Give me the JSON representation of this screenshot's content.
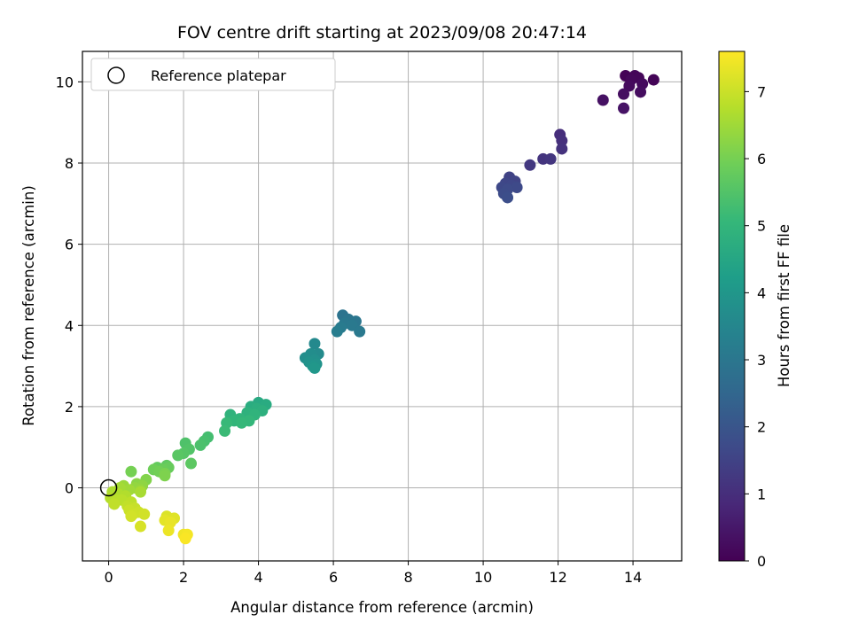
{
  "chart_data": {
    "type": "scatter",
    "title": "FOV centre drift starting at 2023/09/08 20:47:14",
    "xlabel": "Angular distance from reference (arcmin)",
    "ylabel": "Rotation from reference (arcmin)",
    "xlim": [
      -0.7,
      15.3
    ],
    "ylim": [
      -1.8,
      10.75
    ],
    "xticks": [
      0,
      2,
      4,
      6,
      8,
      10,
      12,
      14
    ],
    "yticks": [
      0,
      2,
      4,
      6,
      8,
      10
    ],
    "grid": true,
    "legend": {
      "position": "top-left",
      "entries": [
        "Reference platepar"
      ]
    },
    "reference_point": {
      "x": 0,
      "y": 0,
      "label": "Reference platepar"
    },
    "colorbar": {
      "label": "Hours from first FF file",
      "range": [
        0,
        7.6
      ],
      "ticks": [
        0,
        1,
        2,
        3,
        4,
        5,
        6,
        7
      ],
      "colormap": "viridis"
    },
    "series": [
      {
        "points": [
          {
            "x": 13.8,
            "y": 10.15,
            "t": 0.05
          },
          {
            "x": 14.05,
            "y": 10.15,
            "t": 0.1
          },
          {
            "x": 14.15,
            "y": 10.1,
            "t": 0.12
          },
          {
            "x": 13.95,
            "y": 10.05,
            "t": 0.15
          },
          {
            "x": 14.55,
            "y": 10.05,
            "t": 0.08
          },
          {
            "x": 14.25,
            "y": 9.95,
            "t": 0.2
          },
          {
            "x": 13.9,
            "y": 9.9,
            "t": 0.22
          },
          {
            "x": 14.2,
            "y": 9.75,
            "t": 0.25
          },
          {
            "x": 13.75,
            "y": 9.7,
            "t": 0.28
          },
          {
            "x": 13.2,
            "y": 9.55,
            "t": 0.35
          },
          {
            "x": 13.75,
            "y": 9.35,
            "t": 0.4
          },
          {
            "x": 12.05,
            "y": 8.7,
            "t": 1.0
          },
          {
            "x": 12.1,
            "y": 8.55,
            "t": 1.05
          },
          {
            "x": 12.1,
            "y": 8.35,
            "t": 1.1
          },
          {
            "x": 11.6,
            "y": 8.1,
            "t": 1.15
          },
          {
            "x": 11.8,
            "y": 8.1,
            "t": 1.18
          },
          {
            "x": 11.25,
            "y": 7.95,
            "t": 1.25
          },
          {
            "x": 10.7,
            "y": 7.65,
            "t": 1.5
          },
          {
            "x": 10.85,
            "y": 7.55,
            "t": 1.55
          },
          {
            "x": 10.6,
            "y": 7.5,
            "t": 1.6
          },
          {
            "x": 10.75,
            "y": 7.45,
            "t": 1.62
          },
          {
            "x": 10.5,
            "y": 7.4,
            "t": 1.65
          },
          {
            "x": 10.9,
            "y": 7.4,
            "t": 1.7
          },
          {
            "x": 10.65,
            "y": 7.35,
            "t": 1.72
          },
          {
            "x": 10.55,
            "y": 7.25,
            "t": 1.75
          },
          {
            "x": 10.65,
            "y": 7.15,
            "t": 1.8
          },
          {
            "x": 6.25,
            "y": 4.25,
            "t": 2.9
          },
          {
            "x": 6.4,
            "y": 4.15,
            "t": 2.95
          },
          {
            "x": 6.6,
            "y": 4.1,
            "t": 3.0
          },
          {
            "x": 6.3,
            "y": 4.05,
            "t": 3.05
          },
          {
            "x": 6.5,
            "y": 4.0,
            "t": 3.1
          },
          {
            "x": 6.2,
            "y": 3.95,
            "t": 3.15
          },
          {
            "x": 6.1,
            "y": 3.85,
            "t": 3.2
          },
          {
            "x": 6.7,
            "y": 3.85,
            "t": 3.1
          },
          {
            "x": 5.5,
            "y": 3.55,
            "t": 3.6
          },
          {
            "x": 5.6,
            "y": 3.3,
            "t": 3.65
          },
          {
            "x": 5.4,
            "y": 3.3,
            "t": 3.7
          },
          {
            "x": 5.25,
            "y": 3.2,
            "t": 3.75
          },
          {
            "x": 5.5,
            "y": 3.15,
            "t": 3.8
          },
          {
            "x": 5.35,
            "y": 3.1,
            "t": 3.85
          },
          {
            "x": 5.55,
            "y": 3.05,
            "t": 3.9
          },
          {
            "x": 5.45,
            "y": 3.0,
            "t": 3.95
          },
          {
            "x": 5.5,
            "y": 2.95,
            "t": 4.0
          },
          {
            "x": 4.0,
            "y": 2.1,
            "t": 4.6
          },
          {
            "x": 4.2,
            "y": 2.05,
            "t": 4.65
          },
          {
            "x": 3.8,
            "y": 2.0,
            "t": 4.7
          },
          {
            "x": 3.95,
            "y": 1.95,
            "t": 4.75
          },
          {
            "x": 4.1,
            "y": 1.9,
            "t": 4.8
          },
          {
            "x": 3.7,
            "y": 1.85,
            "t": 4.85
          },
          {
            "x": 3.25,
            "y": 1.8,
            "t": 4.9
          },
          {
            "x": 3.9,
            "y": 1.8,
            "t": 4.92
          },
          {
            "x": 3.5,
            "y": 1.7,
            "t": 4.95
          },
          {
            "x": 3.35,
            "y": 1.65,
            "t": 5.0
          },
          {
            "x": 3.75,
            "y": 1.65,
            "t": 5.02
          },
          {
            "x": 3.55,
            "y": 1.6,
            "t": 5.05
          },
          {
            "x": 3.15,
            "y": 1.6,
            "t": 5.1
          },
          {
            "x": 3.1,
            "y": 1.4,
            "t": 5.15
          },
          {
            "x": 2.65,
            "y": 1.25,
            "t": 5.3
          },
          {
            "x": 2.55,
            "y": 1.15,
            "t": 5.35
          },
          {
            "x": 2.05,
            "y": 1.1,
            "t": 5.45
          },
          {
            "x": 2.45,
            "y": 1.05,
            "t": 5.4
          },
          {
            "x": 2.15,
            "y": 0.95,
            "t": 5.5
          },
          {
            "x": 2.0,
            "y": 0.85,
            "t": 5.55
          },
          {
            "x": 1.85,
            "y": 0.8,
            "t": 5.6
          },
          {
            "x": 2.2,
            "y": 0.6,
            "t": 5.65
          },
          {
            "x": 1.55,
            "y": 0.55,
            "t": 5.7
          },
          {
            "x": 1.3,
            "y": 0.5,
            "t": 5.75
          },
          {
            "x": 1.6,
            "y": 0.5,
            "t": 5.8
          },
          {
            "x": 1.45,
            "y": 0.45,
            "t": 5.85
          },
          {
            "x": 1.2,
            "y": 0.45,
            "t": 5.9
          },
          {
            "x": 1.35,
            "y": 0.4,
            "t": 5.95
          },
          {
            "x": 0.6,
            "y": 0.4,
            "t": 6.0
          },
          {
            "x": 1.5,
            "y": 0.35,
            "t": 6.05
          },
          {
            "x": 1.5,
            "y": 0.3,
            "t": 6.1
          },
          {
            "x": 1.0,
            "y": 0.2,
            "t": 6.15
          },
          {
            "x": 0.75,
            "y": 0.1,
            "t": 6.25
          },
          {
            "x": 0.9,
            "y": 0.05,
            "t": 6.3
          },
          {
            "x": 0.7,
            "y": 0.0,
            "t": 6.35
          },
          {
            "x": 0.85,
            "y": -0.05,
            "t": 6.4
          },
          {
            "x": 0.4,
            "y": 0.05,
            "t": 6.45
          },
          {
            "x": 0.55,
            "y": -0.05,
            "t": 6.5
          },
          {
            "x": 0.3,
            "y": 0.0,
            "t": 6.55
          },
          {
            "x": 0.85,
            "y": -0.1,
            "t": 6.6
          },
          {
            "x": 0.1,
            "y": -0.1,
            "t": 6.65
          },
          {
            "x": 0.25,
            "y": -0.15,
            "t": 6.7
          },
          {
            "x": 0.45,
            "y": -0.2,
            "t": 6.72
          },
          {
            "x": 0.05,
            "y": -0.25,
            "t": 6.75
          },
          {
            "x": 0.2,
            "y": -0.3,
            "t": 6.8
          },
          {
            "x": 0.35,
            "y": -0.3,
            "t": 6.82
          },
          {
            "x": 0.6,
            "y": -0.35,
            "t": 6.85
          },
          {
            "x": 0.15,
            "y": -0.4,
            "t": 6.88
          },
          {
            "x": 0.5,
            "y": -0.45,
            "t": 6.9
          },
          {
            "x": 0.7,
            "y": -0.5,
            "t": 6.95
          },
          {
            "x": 0.55,
            "y": -0.55,
            "t": 7.0
          },
          {
            "x": 0.8,
            "y": -0.6,
            "t": 7.02
          },
          {
            "x": 0.65,
            "y": -0.65,
            "t": 7.05
          },
          {
            "x": 0.95,
            "y": -0.65,
            "t": 7.08
          },
          {
            "x": 0.6,
            "y": -0.7,
            "t": 7.1
          },
          {
            "x": 0.85,
            "y": -0.95,
            "t": 7.15
          },
          {
            "x": 1.55,
            "y": -0.7,
            "t": 7.2
          },
          {
            "x": 1.75,
            "y": -0.75,
            "t": 7.25
          },
          {
            "x": 1.5,
            "y": -0.8,
            "t": 7.3
          },
          {
            "x": 1.65,
            "y": -0.85,
            "t": 7.35
          },
          {
            "x": 1.6,
            "y": -1.05,
            "t": 7.4
          },
          {
            "x": 2.0,
            "y": -1.15,
            "t": 7.45
          },
          {
            "x": 2.1,
            "y": -1.15,
            "t": 7.5
          },
          {
            "x": 2.05,
            "y": -1.25,
            "t": 7.55
          }
        ]
      }
    ]
  }
}
